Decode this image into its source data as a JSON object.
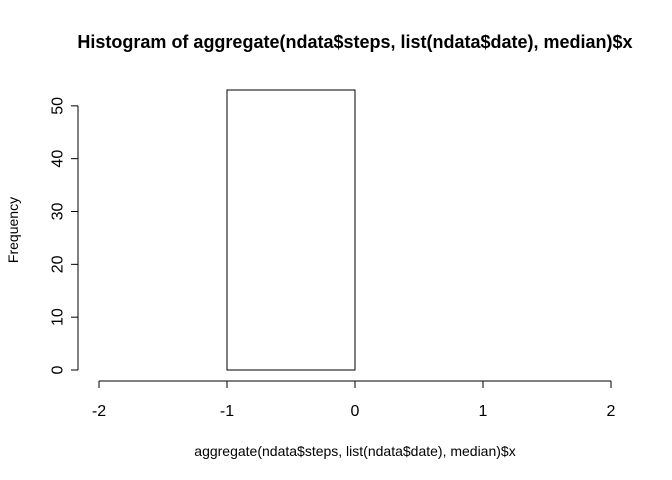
{
  "chart_data": {
    "type": "bar",
    "title": "Histogram of aggregate(ndata$steps, list(ndata$date), median)$x",
    "xlabel": "aggregate(ndata$steps, list(ndata$date), median)$x",
    "ylabel": "Frequency",
    "xlim": [
      -2,
      2
    ],
    "ylim": [
      0,
      53
    ],
    "x_ticks": [
      -2,
      -1,
      0,
      1,
      2
    ],
    "y_ticks": [
      0,
      10,
      20,
      30,
      40,
      50
    ],
    "bins": [
      {
        "start": -1,
        "end": 0,
        "value": 53
      }
    ],
    "grid": false,
    "bar_fill": "#ffffff",
    "bar_stroke": "#000000"
  }
}
